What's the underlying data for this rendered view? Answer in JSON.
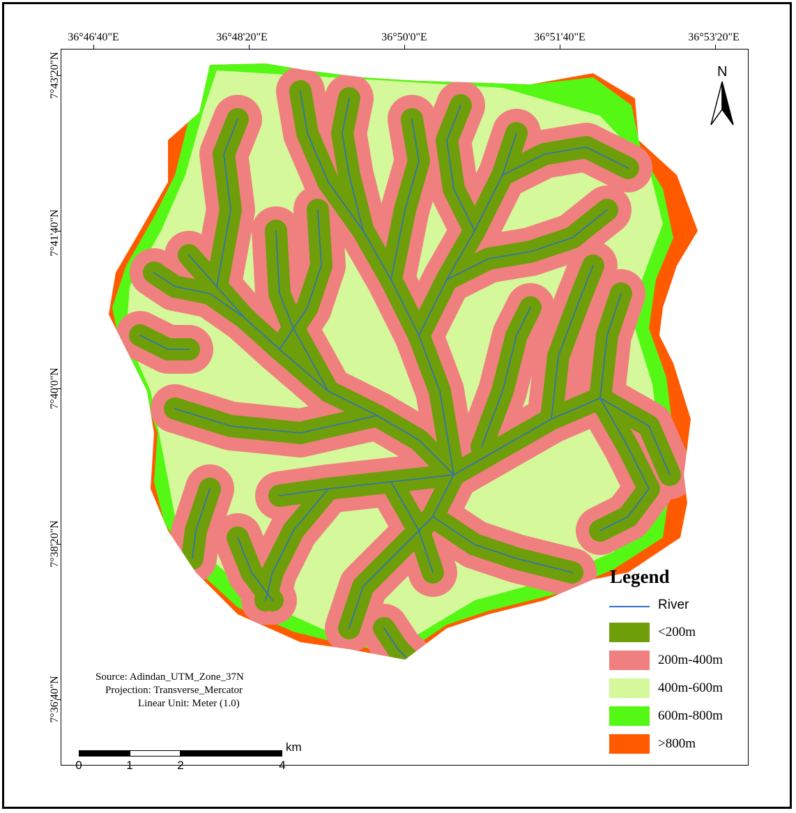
{
  "map": {
    "lon_labels": [
      "36°46'40\"E",
      "36°48'20\"E",
      "36°50'0\"E",
      "36°51'40\"E",
      "36°53'20\"E"
    ],
    "lat_labels": [
      "7°43'20\"N",
      "7°41'40\"N",
      "7°40'0\"N",
      "7°38'20\"N",
      "7°36'40\"N"
    ]
  },
  "north_arrow": {
    "label": "N"
  },
  "legend": {
    "title": "Legend",
    "river": {
      "label": "River",
      "color": "#2e6fbe"
    },
    "classes": [
      {
        "label": "<200m",
        "color": "#6e9e0a"
      },
      {
        "label": "200m-400m",
        "color": "#f08080"
      },
      {
        "label": "400m-600m",
        "color": "#d4f89a"
      },
      {
        "label": "600m-800m",
        "color": "#55f814"
      },
      {
        "label": ">800m",
        "color": "#ff5a00"
      }
    ]
  },
  "source": {
    "line1": "Source: Adindan_UTM_Zone_37N",
    "line2": "Projection: Transverse_Mercator",
    "line3": "Linear Unit: Meter (1.0)"
  },
  "scale_bar": {
    "labels": [
      "0",
      "1",
      "2",
      "4"
    ],
    "unit": "km"
  }
}
